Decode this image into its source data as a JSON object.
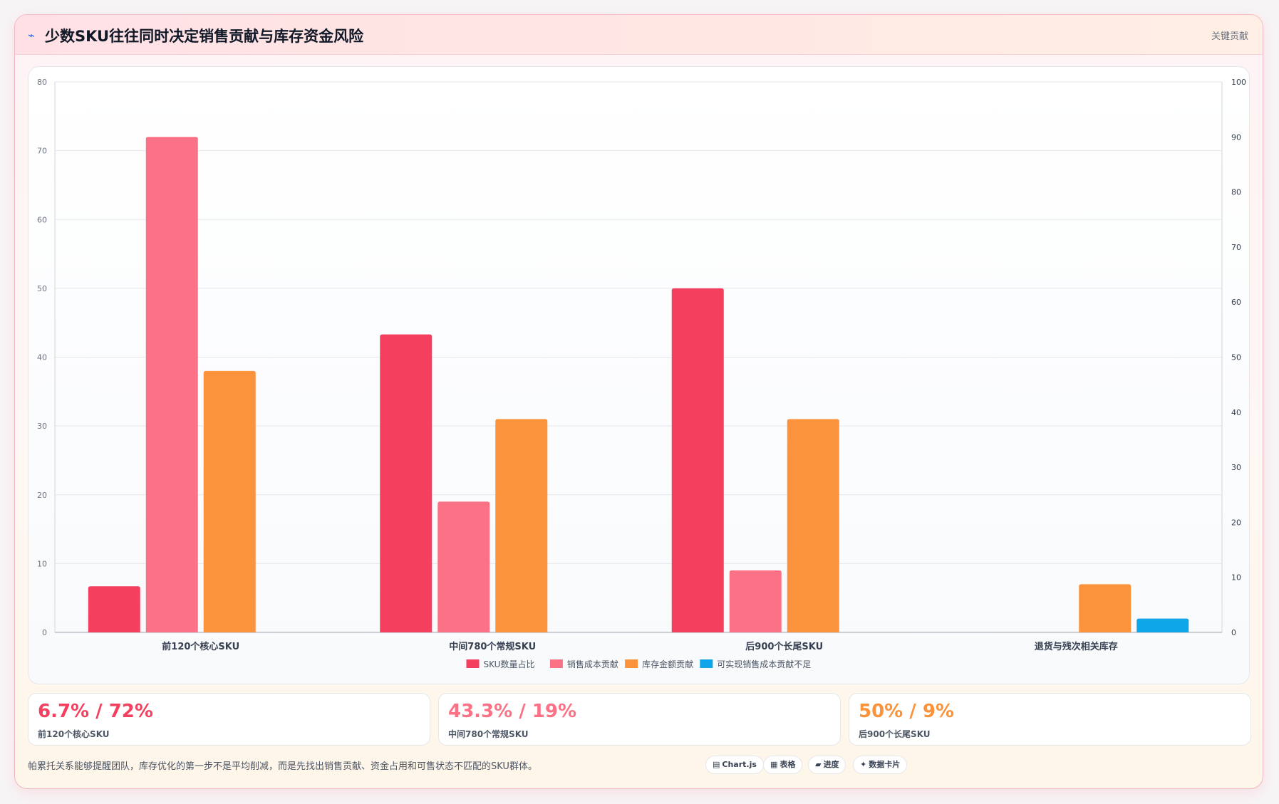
{
  "header": {
    "icon": "trend-line-icon",
    "title": "少数SKU往往同时决定销售贡献与库存资金风险",
    "badge": "关键贡献"
  },
  "chart_data": {
    "type": "bar",
    "categories": [
      "前120个核心SKU",
      "中间780个常规SKU",
      "后900个长尾SKU",
      "退货与残次相关库存"
    ],
    "series": [
      {
        "name": "SKU数量占比",
        "values": [
          6.7,
          43.3,
          50,
          0
        ],
        "color": "#f43f5e",
        "axis": "left"
      },
      {
        "name": "销售成本贡献",
        "values": [
          72,
          19,
          9,
          0
        ],
        "color": "#fb7185",
        "axis": "left"
      },
      {
        "name": "库存金额贡献",
        "values": [
          38,
          31,
          31,
          7
        ],
        "color": "#fb923c",
        "axis": "left"
      },
      {
        "name": "可实现销售成本贡献不足",
        "values": [
          0,
          0,
          0,
          2
        ],
        "color": "#0ea5e9",
        "axis": "left"
      }
    ],
    "y_left": {
      "min": 0,
      "max": 80,
      "ticks": [
        "0",
        "10",
        "20",
        "30",
        "40",
        "50",
        "60",
        "70",
        "80"
      ]
    },
    "y_right": {
      "min": 0,
      "max": 100,
      "ticks": [
        "0",
        "10",
        "20",
        "30",
        "40",
        "50",
        "60",
        "70",
        "80",
        "90",
        "100"
      ]
    },
    "grid": true,
    "legend": "bottom"
  },
  "stats": [
    {
      "value": "6.7% / 72%",
      "label": "前120个核心SKU",
      "color": "#f43f5e"
    },
    {
      "value": "43.3% / 19%",
      "label": "中间780个常规SKU",
      "color": "#fb7185"
    },
    {
      "value": "50% / 9%",
      "label": "后900个长尾SKU",
      "color": "#fb923c"
    }
  ],
  "footer": {
    "note": "帕累托关系能够提醒团队，库存优化的第一步不是平均削减，而是先找出销售贡献、资金占用和可售状态不匹配的SKU群体。",
    "chips": [
      {
        "icon": "▤",
        "label": "Chart.js"
      },
      {
        "icon": "▦",
        "label": "表格"
      },
      {
        "icon": "▰",
        "label": "进度"
      },
      {
        "icon": "✦",
        "label": "数据卡片"
      }
    ]
  }
}
